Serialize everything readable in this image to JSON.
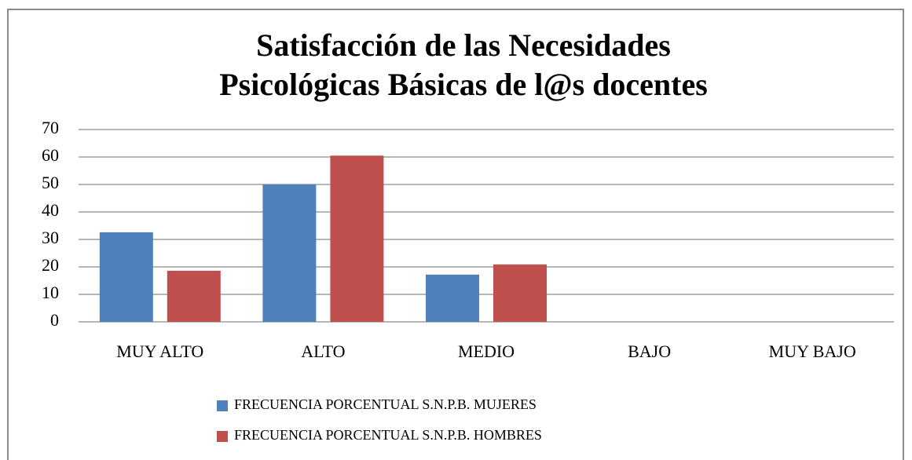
{
  "chart_data": {
    "type": "bar",
    "title": [
      "Satisfacción de las Necesidades",
      "Psicológicas Básicas de l@s docentes"
    ],
    "categories": [
      "MUY ALTO",
      "ALTO",
      "MEDIO",
      "BAJO",
      "MUY BAJO"
    ],
    "series": [
      {
        "name": "FRECUENCIA PORCENTUAL S.N.P.B. MUJERES",
        "color": "#4f81bd",
        "values": [
          32.6,
          50,
          17.2,
          0,
          0
        ]
      },
      {
        "name": "FRECUENCIA PORCENTUAL S.N.P.B. HOMBRES",
        "color": "#c0504d",
        "values": [
          18.6,
          60.5,
          20.9,
          0,
          0
        ]
      }
    ],
    "ylim": [
      0,
      70
    ],
    "yticks": [
      0,
      10,
      20,
      30,
      40,
      50,
      60,
      70
    ],
    "grid": true,
    "legend": "bottom"
  }
}
